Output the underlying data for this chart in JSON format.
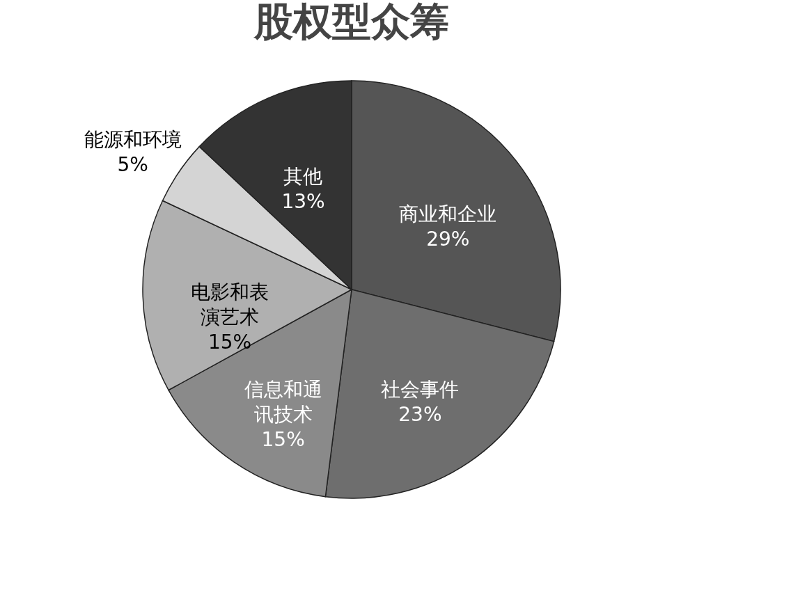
{
  "chart_data": {
    "type": "pie",
    "title": "股权型众筹",
    "categories": [
      "商业和企业",
      "社会事件",
      "信息和通讯技术",
      "电影和表演艺术",
      "能源和环境",
      "其他"
    ],
    "values": [
      29,
      23,
      15,
      15,
      5,
      13
    ],
    "value_labels": [
      "29%",
      "23%",
      "15%",
      "15%",
      "5%",
      "13%"
    ],
    "colors": [
      "#555555",
      "#6e6e6e",
      "#8a8a8a",
      "#b0b0b0",
      "#d4d4d4",
      "#333333"
    ],
    "legend": false
  }
}
